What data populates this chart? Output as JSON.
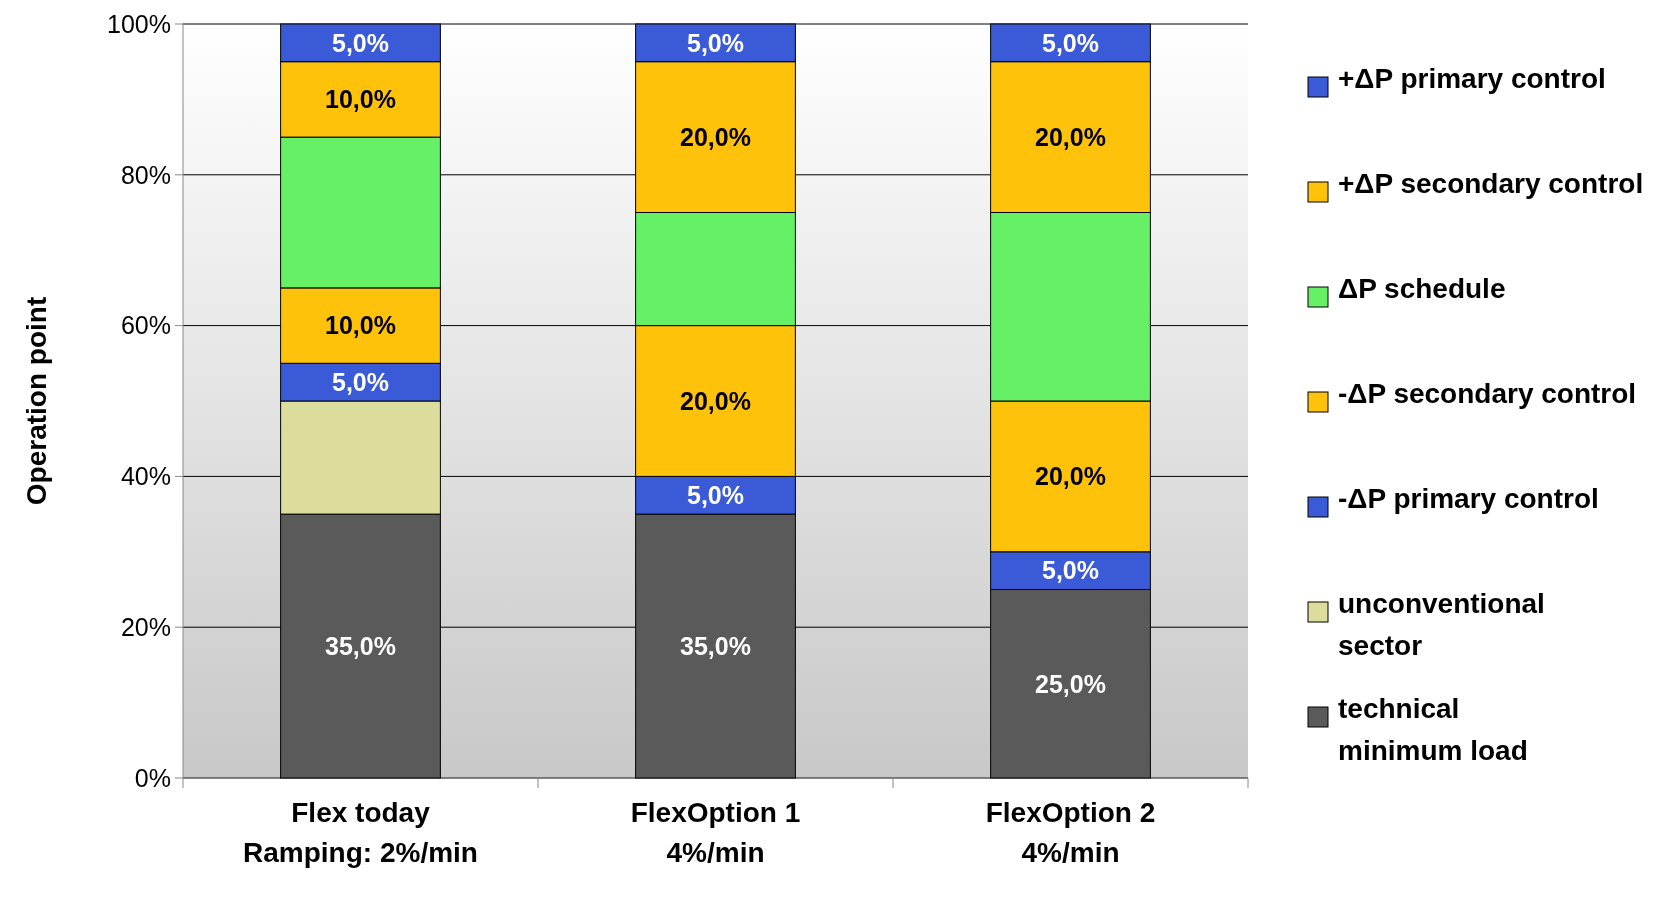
{
  "chart_data": {
    "type": "bar",
    "stacked": true,
    "ylabel": "Operation point",
    "categories": [
      "Flex today\nRamping:  2%/min",
      "FlexOption 1\n4%/min",
      "FlexOption 2\n4%/min"
    ],
    "series": [
      {
        "name": "technical\nminimum load",
        "color": "#5a5a5a",
        "values": [
          35,
          35,
          25
        ],
        "value_labels": [
          "35,0%",
          "35,0%",
          "25,0%"
        ]
      },
      {
        "name": "unconventional\nsector",
        "color": "#dcdc9c",
        "values": [
          15,
          0,
          0
        ],
        "value_labels": [
          null,
          null,
          null
        ]
      },
      {
        "name": "-ΔP primary control",
        "color": "#3a5ad8",
        "values": [
          5,
          5,
          5
        ],
        "value_labels": [
          "5,0%",
          "5,0%",
          "5,0%"
        ]
      },
      {
        "name": "-ΔP secondary control",
        "color": "#ffc20a",
        "values": [
          10,
          20,
          20
        ],
        "value_labels": [
          "10,0%",
          "20,0%",
          "20,0%"
        ]
      },
      {
        "name": "ΔP schedule",
        "color": "#66f066",
        "values": [
          20,
          15,
          25
        ],
        "value_labels": [
          null,
          null,
          null
        ]
      },
      {
        "name": "+ΔP secondary control",
        "color": "#ffc20a",
        "values": [
          10,
          20,
          20
        ],
        "value_labels": [
          "10,0%",
          "20,0%",
          "20,0%"
        ]
      },
      {
        "name": "+ΔP primary control",
        "color": "#3a5ad8",
        "values": [
          5,
          5,
          5
        ],
        "value_labels": [
          "5,0%",
          "5,0%",
          "5,0%"
        ]
      }
    ],
    "ylim": [
      0,
      100
    ],
    "yticks": [
      {
        "value": 0,
        "label": "0%"
      },
      {
        "value": 20,
        "label": "20%"
      },
      {
        "value": 40,
        "label": "40%"
      },
      {
        "value": 60,
        "label": "60%"
      },
      {
        "value": 80,
        "label": "80%"
      },
      {
        "value": 100,
        "label": "100%"
      }
    ],
    "grid": "y",
    "legend": "right"
  }
}
